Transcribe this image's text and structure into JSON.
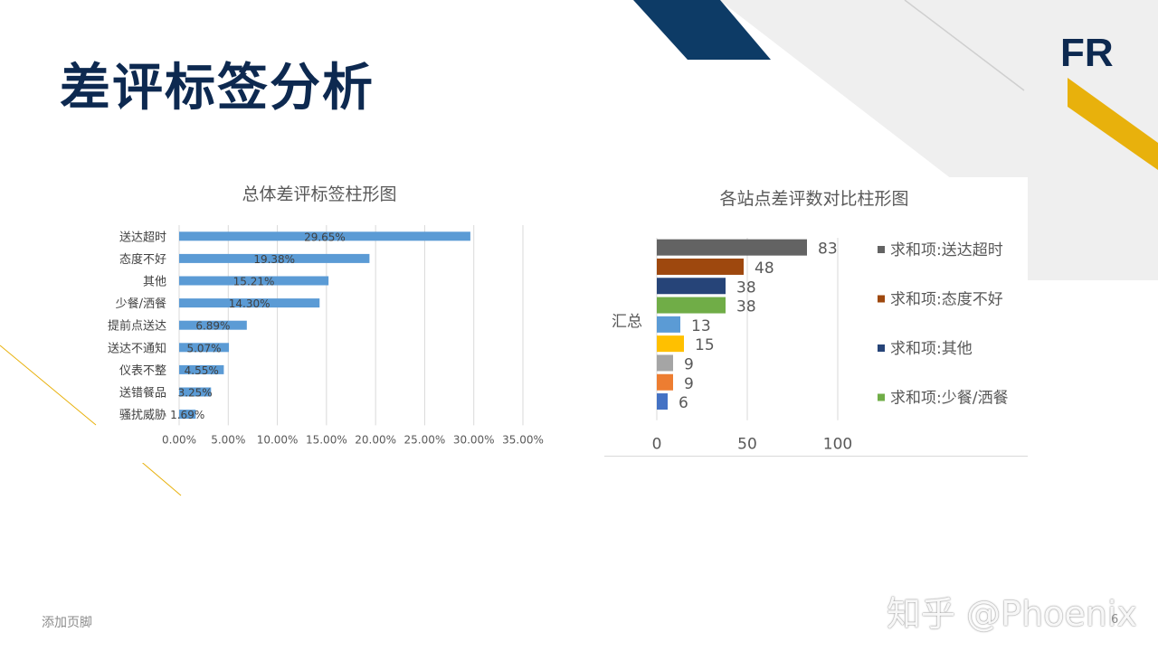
{
  "slide": {
    "title": "差评标签分析",
    "logo": "FR",
    "footer": "添加页脚",
    "page_number": "6",
    "watermark": "知乎 @Phoenix",
    "colors": {
      "navy": "#0d2950",
      "gold": "#e8b10c",
      "grey": "#efefef"
    }
  },
  "chart_data": [
    {
      "type": "bar",
      "orientation": "horizontal",
      "title": "总体差评标签柱形图",
      "categories": [
        "送达超时",
        "态度不好",
        "其他",
        "少餐/洒餐",
        "提前点送达",
        "送达不通知",
        "仪表不整",
        "送错餐品",
        "骚扰威胁"
      ],
      "values": [
        29.65,
        19.38,
        15.21,
        14.3,
        6.89,
        5.07,
        4.55,
        3.25,
        1.69
      ],
      "data_labels": [
        "29.65%",
        "19.38%",
        "15.21%",
        "14.30%",
        "6.89%",
        "5.07%",
        "4.55%",
        "3.25%",
        "1.69%"
      ],
      "xlim": [
        0,
        35
      ],
      "x_ticks": [
        "0.00%",
        "5.00%",
        "10.00%",
        "15.00%",
        "20.00%",
        "25.00%",
        "30.00%",
        "35.00%"
      ],
      "bar_color": "#5b9bd5",
      "grid": true
    },
    {
      "type": "bar",
      "orientation": "horizontal",
      "title": "各站点差评数对比柱形图",
      "category": "汇总",
      "series": [
        {
          "name": "求和项:送达超时",
          "value": 83,
          "color": "#636363"
        },
        {
          "name": "求和项:态度不好",
          "value": 48,
          "color": "#9e480e"
        },
        {
          "name": "求和项:其他",
          "value": 38,
          "color": "#264478"
        },
        {
          "name": "求和项:少餐/洒餐",
          "value": 38,
          "color": "#70ad47"
        },
        {
          "name": "",
          "value": 13,
          "color": "#5b9bd5"
        },
        {
          "name": "",
          "value": 15,
          "color": "#ffc000"
        },
        {
          "name": "",
          "value": 9,
          "color": "#a5a5a5"
        },
        {
          "name": "",
          "value": 9,
          "color": "#ed7d31"
        },
        {
          "name": "",
          "value": 6,
          "color": "#4472c4"
        }
      ],
      "xlim": [
        0,
        100
      ],
      "x_ticks": [
        "0",
        "50",
        "100"
      ],
      "legend_position": "right",
      "grid": true
    }
  ]
}
